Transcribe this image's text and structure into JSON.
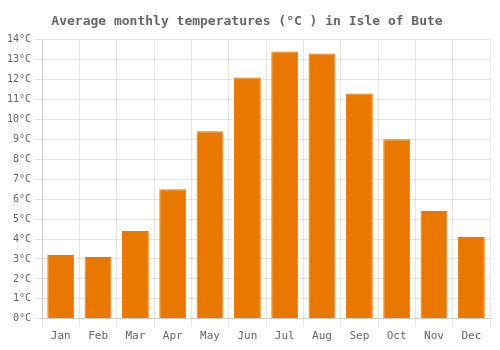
{
  "chart_data": {
    "type": "bar",
    "title": "Average monthly temperatures (°C ) in Isle of Bute",
    "categories": [
      "Jan",
      "Feb",
      "Mar",
      "Apr",
      "May",
      "Jun",
      "Jul",
      "Aug",
      "Sep",
      "Oct",
      "Nov",
      "Dec"
    ],
    "values": [
      3.2,
      3.1,
      4.4,
      6.5,
      9.4,
      12.1,
      13.4,
      13.3,
      11.3,
      9.0,
      5.4,
      4.1
    ],
    "color": "#E87800",
    "ylim": [
      0,
      14
    ],
    "yticks": [
      {
        "value": 0,
        "label": "0°C"
      },
      {
        "value": 1,
        "label": "1°C"
      },
      {
        "value": 2,
        "label": "2°C"
      },
      {
        "value": 3,
        "label": "3°C"
      },
      {
        "value": 4,
        "label": "4°C"
      },
      {
        "value": 5,
        "label": "5°C"
      },
      {
        "value": 6,
        "label": "6°C"
      },
      {
        "value": 7,
        "label": "7°C"
      },
      {
        "value": 8,
        "label": "8°C"
      },
      {
        "value": 9,
        "label": "9°C"
      },
      {
        "value": 10,
        "label": "10°C"
      },
      {
        "value": 11,
        "label": "11°C"
      },
      {
        "value": 12,
        "label": "12°C"
      },
      {
        "value": 13,
        "label": "13°C"
      },
      {
        "value": 14,
        "label": "14°C"
      }
    ],
    "grid": true
  }
}
